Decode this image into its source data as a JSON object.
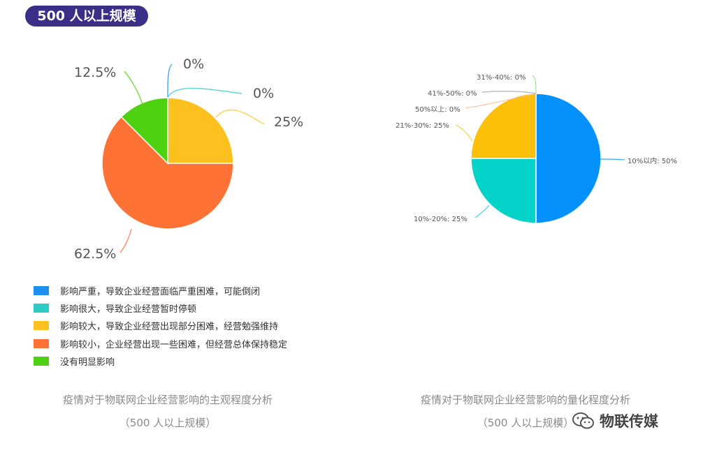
{
  "header": {
    "badge": "500 人以上规模"
  },
  "chart_data": [
    {
      "type": "pie",
      "slices": [
        {
          "label": "影响严重，导致企业经营面临严重困难，可能倒闭",
          "value": 0,
          "data_label": "0%",
          "color": "#1c8fef"
        },
        {
          "label": "影响很大，导致企业经营暂时停顿",
          "value": 0,
          "data_label": "0%",
          "color": "#2ecbc4"
        },
        {
          "label": "影响较大，导致企业经营出现部分困难，经营勉强维持",
          "value": 25,
          "data_label": "25%",
          "color": "#fdc11f"
        },
        {
          "label": "影响较小，企业经营出现一些困难，但经营总体保持稳定",
          "value": 62.5,
          "data_label": "62.5%",
          "color": "#ff7236"
        },
        {
          "label": "没有明显影响",
          "value": 12.5,
          "data_label": "12.5%",
          "color": "#4ed111"
        }
      ],
      "legend_position": "bottom",
      "caption_line1": "疫情对于物联网企业经营影响的主观程度分析",
      "caption_line2": "（500 人以上规模）"
    },
    {
      "type": "pie",
      "slices": [
        {
          "label": "10%以内",
          "value": 50,
          "data_label": "10%以内: 50%",
          "color": "#0591fb"
        },
        {
          "label": "10%-20%",
          "value": 25,
          "data_label": "10%-20%: 25%",
          "color": "#05d2c8"
        },
        {
          "label": "21%-30%",
          "value": 25,
          "data_label": "21%-30%: 25%",
          "color": "#fcbf0a"
        },
        {
          "label": "50%以上",
          "value": 0,
          "data_label": "50%以上: 0%",
          "color": "#ffb98e"
        },
        {
          "label": "41%-50%",
          "value": 0,
          "data_label": "41%-50%: 0%",
          "color": "#9aa3ad"
        },
        {
          "label": "31%-40%",
          "value": 0,
          "data_label": "31%-40%: 0%",
          "color": "#8fd67f"
        }
      ],
      "caption_line1": "疫情对于物联网企业经营影响的量化程度分析",
      "caption_line2": "（500 人以上规模）"
    }
  ],
  "watermark": {
    "text": "物联传媒",
    "icon": "wechat-icon"
  }
}
